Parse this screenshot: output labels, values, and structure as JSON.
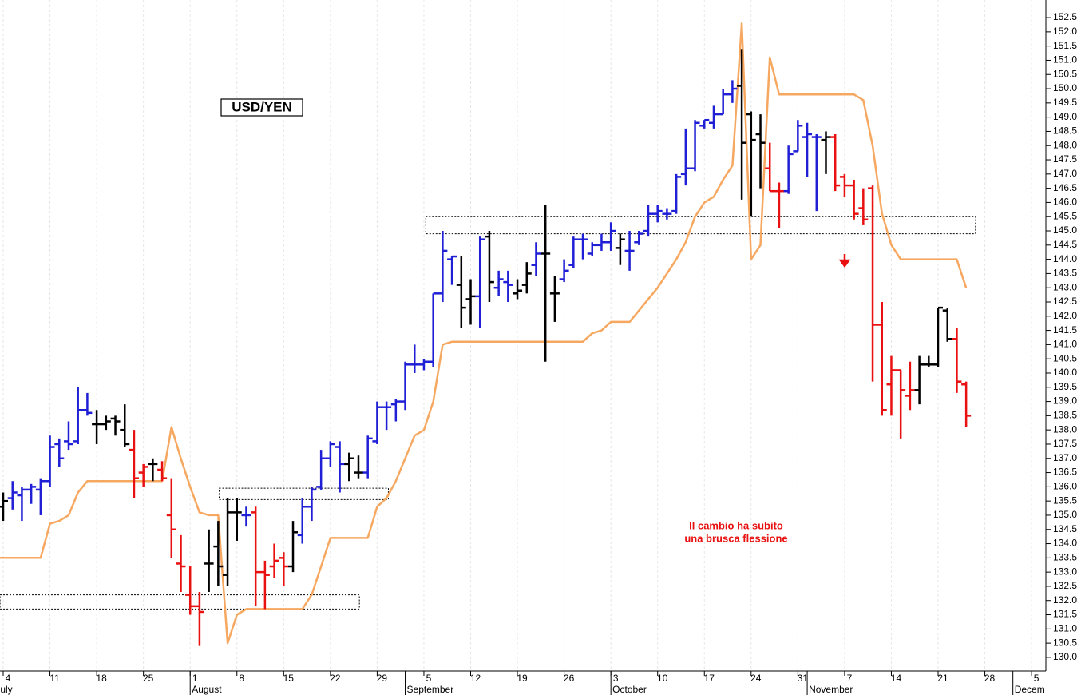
{
  "chart_data": {
    "type": "ohlc",
    "title": "USD/YEN",
    "annotation": [
      "Il cambio ha subito",
      "una brusca flessione"
    ],
    "annotation_color": "#e81010",
    "categories": [
      null,
      "4",
      null,
      null,
      null,
      null,
      "11",
      null,
      null,
      null,
      null,
      "18",
      null,
      null,
      null,
      null,
      "25",
      null,
      null,
      null,
      null,
      "1",
      null,
      null,
      null,
      null,
      "8",
      null,
      null,
      null,
      null,
      "15",
      null,
      null,
      null,
      null,
      "22",
      null,
      null,
      null,
      null,
      "29",
      null,
      null,
      null,
      null,
      "5",
      null,
      null,
      null,
      null,
      "12",
      null,
      null,
      null,
      null,
      "19",
      null,
      null,
      null,
      null,
      "26",
      null,
      null,
      null,
      null,
      "3",
      null,
      null,
      null,
      null,
      "10",
      null,
      null,
      null,
      null,
      "17",
      null,
      null,
      null,
      null,
      "24",
      null,
      null,
      null,
      null,
      "31",
      null,
      null,
      null,
      null,
      "7",
      null,
      null,
      null,
      null,
      "14",
      null,
      null,
      null,
      null,
      "21",
      null,
      null,
      null,
      null,
      "28",
      null,
      null,
      null,
      null,
      "5"
    ],
    "months": [
      {
        "label": "July",
        "at": 0
      },
      {
        "label": "August",
        "at": 21
      },
      {
        "label": "September",
        "at": 44
      },
      {
        "label": "October",
        "at": 66
      },
      {
        "label": "November",
        "at": 87
      },
      {
        "label": "Decem",
        "at": 109
      }
    ],
    "ohlc": {
      "open": [
        null,
        135.3,
        135.6,
        135.7,
        135.9,
        135.9,
        136.2,
        137.5,
        137.6,
        137.6,
        138.7,
        138.2,
        138.2,
        138.4,
        138.0,
        137.3,
        136.5,
        136.8,
        136.6,
        135.0,
        133.3,
        132.2,
        131.8,
        133.3,
        133.9,
        132.9,
        135.1,
        135.0,
        135.1,
        133.0,
        133.2,
        133.5,
        133.2,
        134.3,
        135.3,
        136.0,
        137.0,
        137.4,
        136.8,
        136.5,
        136.5,
        137.6,
        138.8,
        138.9,
        139.0,
        140.3,
        140.3,
        140.4,
        142.8,
        144.0,
        143.1,
        142.6,
        142.7,
        144.8,
        143.0,
        143.2,
        142.8,
        143.1,
        143.8,
        144.2,
        142.8,
        143.3,
        143.8,
        144.7,
        144.2,
        144.5,
        144.6,
        144.4,
        144.3,
        144.6,
        145.0,
        145.6,
        145.6,
        145.7,
        147.0,
        147.2,
        148.7,
        148.8,
        149.1,
        149.8,
        150.1,
        149.1,
        148.4,
        147.2,
        146.4,
        146.4,
        147.8,
        148.3,
        148.3,
        148.2,
        148.3,
        146.9,
        146.6,
        145.8,
        146.5,
        141.7,
        139.6,
        140.1,
        139.2,
        139.4,
        140.3,
        140.3,
        142.2,
        141.2,
        139.6,
        null,
        null,
        null,
        null,
        null,
        null,
        null
      ],
      "high": [
        null,
        135.8,
        136.2,
        136.0,
        136.1,
        136.3,
        137.8,
        137.7,
        138.3,
        139.5,
        139.3,
        138.7,
        138.5,
        138.5,
        138.9,
        138.0,
        136.8,
        137.0,
        136.9,
        136.3,
        134.3,
        133.2,
        132.3,
        134.5,
        134.8,
        135.6,
        135.6,
        135.3,
        135.3,
        133.4,
        134.0,
        133.7,
        134.8,
        135.6,
        136.0,
        137.3,
        137.6,
        137.6,
        137.2,
        137.1,
        137.8,
        139.0,
        139.0,
        139.1,
        140.4,
        141.0,
        140.5,
        142.8,
        145.0,
        144.1,
        144.1,
        143.3,
        144.8,
        145.0,
        143.6,
        143.6,
        143.3,
        143.9,
        144.6,
        145.9,
        143.4,
        144.0,
        144.8,
        144.9,
        144.6,
        144.9,
        145.3,
        144.9,
        145.0,
        145.0,
        145.9,
        145.9,
        145.8,
        147.0,
        148.6,
        148.9,
        148.9,
        149.4,
        150.0,
        150.3,
        151.4,
        149.2,
        149.1,
        148.1,
        146.7,
        148.0,
        148.9,
        148.8,
        148.4,
        148.5,
        148.4,
        147.0,
        146.8,
        146.5,
        146.6,
        142.5,
        140.6,
        140.1,
        140.4,
        140.6,
        140.6,
        142.3,
        142.3,
        141.6,
        139.7,
        null,
        null,
        null,
        null,
        null,
        null,
        null
      ],
      "low": [
        null,
        134.8,
        135.2,
        134.8,
        135.4,
        135.0,
        136.0,
        136.7,
        137.3,
        137.5,
        138.5,
        137.5,
        138.0,
        137.8,
        137.4,
        135.6,
        136.0,
        136.2,
        136.2,
        133.5,
        132.3,
        131.5,
        130.4,
        132.3,
        132.5,
        132.5,
        134.1,
        134.6,
        131.8,
        131.7,
        132.8,
        132.5,
        133.0,
        134.0,
        134.8,
        135.9,
        136.7,
        135.8,
        136.2,
        136.3,
        136.3,
        137.5,
        138.0,
        138.3,
        138.7,
        140.0,
        140.1,
        140.2,
        142.5,
        143.1,
        141.6,
        141.7,
        141.6,
        142.5,
        142.7,
        142.5,
        142.6,
        142.8,
        143.4,
        140.4,
        141.8,
        143.2,
        143.7,
        144.0,
        144.1,
        144.3,
        144.3,
        143.8,
        143.6,
        144.5,
        144.8,
        145.3,
        145.4,
        145.6,
        146.6,
        147.1,
        148.6,
        148.6,
        149.1,
        149.5,
        146.1,
        145.5,
        146.5,
        146.4,
        145.1,
        146.3,
        147.8,
        146.9,
        145.7,
        147.0,
        146.4,
        146.2,
        145.4,
        145.2,
        139.7,
        138.5,
        138.5,
        137.7,
        138.7,
        138.9,
        140.2,
        140.2,
        141.1,
        139.3,
        138.1,
        null,
        null,
        null,
        null,
        null,
        null,
        null
      ],
      "close": [
        null,
        135.5,
        135.8,
        135.9,
        136.0,
        136.2,
        137.4,
        137.0,
        137.5,
        138.7,
        138.6,
        138.2,
        138.3,
        138.3,
        137.5,
        136.3,
        136.7,
        136.8,
        136.3,
        134.5,
        133.2,
        131.8,
        131.6,
        133.3,
        133.2,
        135.1,
        135.1,
        135.0,
        133.0,
        132.9,
        133.4,
        133.2,
        134.4,
        135.3,
        135.9,
        137.0,
        137.5,
        136.8,
        137.0,
        136.5,
        137.7,
        138.8,
        138.8,
        139.0,
        140.3,
        140.3,
        140.4,
        142.8,
        144.3,
        144.1,
        142.3,
        142.7,
        144.7,
        143.2,
        143.3,
        143.1,
        142.9,
        143.5,
        144.2,
        144.2,
        142.8,
        143.6,
        144.7,
        144.7,
        144.5,
        144.6,
        145.0,
        144.7,
        144.3,
        144.9,
        145.6,
        145.7,
        145.6,
        146.9,
        147.2,
        148.8,
        148.9,
        149.1,
        149.8,
        150.0,
        148.1,
        148.2,
        148.1,
        146.4,
        146.4,
        147.7,
        148.7,
        148.4,
        148.3,
        148.3,
        146.6,
        146.6,
        145.6,
        145.4,
        141.7,
        138.7,
        140.1,
        139.4,
        139.4,
        140.3,
        140.3,
        142.3,
        141.2,
        139.7,
        138.5,
        null,
        null,
        null,
        null,
        null,
        null,
        null
      ],
      "colors": [
        null,
        "#000000",
        "#1f1fd6",
        "#1f1fd6",
        "#1f1fd6",
        "#1f1fd6",
        "#1f1fd6",
        "#1f1fd6",
        "#1f1fd6",
        "#1f1fd6",
        "#1f1fd6",
        "#000000",
        "#000000",
        "#000000",
        "#000000",
        "#e81010",
        "#e81010",
        "#000000",
        "#e81010",
        "#e81010",
        "#e81010",
        "#e81010",
        "#e81010",
        "#000000",
        "#000000",
        "#000000",
        "#000000",
        "#1f1fd6",
        "#e81010",
        "#e81010",
        "#e81010",
        "#e81010",
        "#000000",
        "#1f1fd6",
        "#1f1fd6",
        "#1f1fd6",
        "#1f1fd6",
        "#1f1fd6",
        "#000000",
        "#000000",
        "#1f1fd6",
        "#1f1fd6",
        "#1f1fd6",
        "#1f1fd6",
        "#1f1fd6",
        "#1f1fd6",
        "#1f1fd6",
        "#1f1fd6",
        "#1f1fd6",
        "#1f1fd6",
        "#000000",
        "#000000",
        "#1f1fd6",
        "#000000",
        "#1f1fd6",
        "#1f1fd6",
        "#000000",
        "#000000",
        "#1f1fd6",
        "#000000",
        "#000000",
        "#1f1fd6",
        "#1f1fd6",
        "#1f1fd6",
        "#1f1fd6",
        "#1f1fd6",
        "#1f1fd6",
        "#000000",
        "#1f1fd6",
        "#1f1fd6",
        "#1f1fd6",
        "#1f1fd6",
        "#1f1fd6",
        "#1f1fd6",
        "#1f1fd6",
        "#1f1fd6",
        "#1f1fd6",
        "#1f1fd6",
        "#1f1fd6",
        "#1f1fd6",
        "#000000",
        "#000000",
        "#000000",
        "#e81010",
        "#e81010",
        "#1f1fd6",
        "#1f1fd6",
        "#1f1fd6",
        "#1f1fd6",
        "#000000",
        "#e81010",
        "#e81010",
        "#e81010",
        "#e81010",
        "#e81010",
        "#e81010",
        "#e81010",
        "#e81010",
        "#e81010",
        "#000000",
        "#000000",
        "#000000",
        "#000000",
        "#e81010",
        "#e81010",
        null,
        null,
        null,
        null,
        null,
        null,
        null
      ]
    },
    "line": {
      "color": "#f6a760",
      "values": [
        133.5,
        133.5,
        133.5,
        133.5,
        133.5,
        133.5,
        134.7,
        134.8,
        135.0,
        135.8,
        136.2,
        136.2,
        136.2,
        136.2,
        136.2,
        136.2,
        136.2,
        136.2,
        136.2,
        138.1,
        137.0,
        136.0,
        135.1,
        135.0,
        135.0,
        130.5,
        131.5,
        131.7,
        131.7,
        131.7,
        131.7,
        131.7,
        131.7,
        131.7,
        132.2,
        133.2,
        134.2,
        134.2,
        134.2,
        134.2,
        134.2,
        135.3,
        135.6,
        136.2,
        137.0,
        137.8,
        138.0,
        139.0,
        141.0,
        141.1,
        141.1,
        141.1,
        141.1,
        141.1,
        141.1,
        141.1,
        141.1,
        141.1,
        141.1,
        141.1,
        141.1,
        141.1,
        141.1,
        141.1,
        141.4,
        141.5,
        141.8,
        141.8,
        141.8,
        142.2,
        142.6,
        143.0,
        143.5,
        144.0,
        144.6,
        145.5,
        146.0,
        146.2,
        146.8,
        147.3,
        152.3,
        144.0,
        144.5,
        151.1,
        149.8,
        149.8,
        149.8,
        149.8,
        149.8,
        149.8,
        149.8,
        149.8,
        149.8,
        149.6,
        148.0,
        145.6,
        144.5,
        144.0,
        144.0,
        144.0,
        144.0,
        144.0,
        144.0,
        144.0,
        143.0,
        null,
        null,
        null,
        null,
        null,
        null,
        null
      ]
    },
    "zones": [
      {
        "xlim": [
          0.66,
          39.1
        ],
        "ylim": [
          131.7,
          132.2
        ]
      },
      {
        "xlim": [
          24.1,
          42.2
        ],
        "ylim": [
          135.55,
          135.95
        ]
      },
      {
        "xlim": [
          46.2,
          105.0
        ],
        "ylim": [
          144.9,
          145.5
        ]
      }
    ],
    "ylim": [
      129.52,
      153.12
    ],
    "yticks": [
      {
        "value": 130,
        "label": "130.0"
      },
      130.5,
      {
        "value": 131,
        "label": "131.0"
      },
      131.5,
      {
        "value": 132,
        "label": "132.0"
      },
      132.5,
      {
        "value": 133,
        "label": "133.0"
      },
      133.5,
      {
        "value": 134,
        "label": "134.0"
      },
      134.5,
      {
        "value": 135,
        "label": "135.0"
      },
      135.5,
      {
        "value": 136,
        "label": "136.0"
      },
      136.5,
      {
        "value": 137,
        "label": "137.0"
      },
      137.5,
      {
        "value": 138,
        "label": "138.0"
      },
      138.5,
      {
        "value": 139,
        "label": "139.0"
      },
      139.5,
      {
        "value": 140,
        "label": "140.0"
      },
      140.5,
      {
        "value": 141,
        "label": "141.0"
      },
      141.5,
      {
        "value": 142,
        "label": "142.0"
      },
      142.5,
      {
        "value": 143,
        "label": "143.0"
      },
      143.5,
      {
        "value": 144,
        "label": "144.0"
      },
      144.5,
      {
        "value": 145,
        "label": "145.0"
      },
      145.5,
      {
        "value": 146,
        "label": "146.0"
      },
      146.5,
      {
        "value": 147,
        "label": "147.0"
      },
      147.5,
      {
        "value": 148,
        "label": "148.0"
      },
      148.5,
      {
        "value": 149,
        "label": "149.0"
      },
      149.5,
      {
        "value": 150,
        "label": "150.0"
      },
      150.5,
      {
        "value": 151,
        "label": "151.0"
      },
      151.5,
      {
        "value": 152,
        "label": "152.0"
      },
      152.5
    ],
    "grid": true
  }
}
